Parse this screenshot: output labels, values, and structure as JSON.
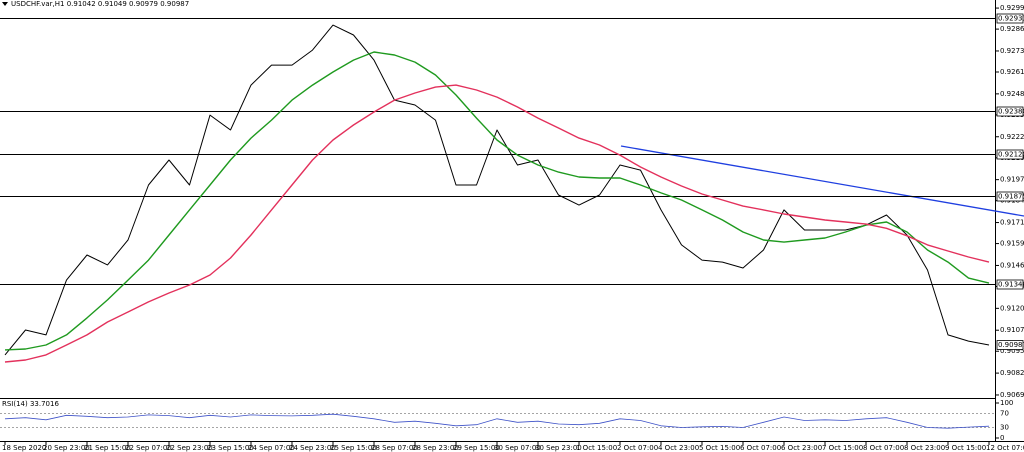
{
  "chart_data": {
    "type": "line",
    "title": "USDCHF.var,H1 0.91042 0.91049 0.90979 0.90987",
    "categories": [
      "18 Sep 2020",
      null,
      "20 Sep 23:00",
      null,
      "21 Sep 15:00",
      null,
      "22 Sep 07:00",
      null,
      "22 Sep 23:00",
      null,
      "23 Sep 15:00",
      null,
      "24 Sep 07:00",
      null,
      "24 Sep 23:00",
      null,
      "25 Sep 15:00",
      null,
      "28 Sep 07:00",
      null,
      "28 Sep 23:00",
      null,
      "29 Sep 15:00",
      null,
      "30 Sep 07:00",
      null,
      "30 Sep 23:00",
      null,
      "1 Oct 15:00",
      null,
      "2 Oct 07:00",
      null,
      "4 Oct 23:00",
      null,
      "5 Oct 15:00",
      null,
      "6 Oct 07:00",
      null,
      "6 Oct 23:00",
      null,
      "7 Oct 15:00",
      null,
      "8 Oct 07:00",
      null,
      "8 Oct 23:00",
      null,
      "9 Oct 15:00",
      null,
      "12 Oct 07:00"
    ],
    "series": [
      {
        "color": "#000000",
        "values": [
          0.90928,
          0.91076,
          0.91047,
          0.91373,
          0.91522,
          0.91463,
          0.91611,
          0.91938,
          0.92087,
          0.91938,
          0.92354,
          0.92265,
          0.92532,
          0.92651,
          0.92651,
          0.9274,
          0.92889,
          0.9283,
          0.92681,
          0.92443,
          0.92414,
          0.92324,
          0.91938,
          0.91938,
          0.92265,
          0.92057,
          0.92087,
          0.91879,
          0.91819,
          0.91879,
          0.92057,
          0.92027,
          0.9179,
          0.91582,
          0.91492,
          0.9148,
          0.91445,
          0.91552,
          0.9179,
          0.91671,
          0.91671,
          0.91671,
          0.917,
          0.9176,
          0.91641,
          0.91433,
          0.91047,
          0.9101,
          0.90987
        ]
      },
      {
        "color": "#1f9a1f",
        "values": [
          0.90958,
          0.90963,
          0.90987,
          0.91047,
          0.91148,
          0.91255,
          0.91373,
          0.91492,
          0.91641,
          0.9179,
          0.91938,
          0.92087,
          0.92217,
          0.92324,
          0.92443,
          0.92532,
          0.9261,
          0.92681,
          0.92729,
          0.92711,
          0.92669,
          0.92592,
          0.92473,
          0.92336,
          0.92206,
          0.92116,
          0.92057,
          0.92015,
          0.91986,
          0.9198,
          0.9198,
          0.91938,
          0.91891,
          0.91849,
          0.9179,
          0.9173,
          0.91659,
          0.91611,
          0.91599,
          0.91611,
          0.91623,
          0.91659,
          0.917,
          0.91718,
          0.91659,
          0.91552,
          0.9148,
          0.91385,
          0.91355
        ]
      },
      {
        "color": "#e3315c",
        "values": [
          0.90886,
          0.90898,
          0.90928,
          0.90987,
          0.91047,
          0.91124,
          0.91183,
          0.91243,
          0.91296,
          0.91344,
          0.91403,
          0.91504,
          0.91641,
          0.9179,
          0.91938,
          0.92087,
          0.92206,
          0.92295,
          0.92372,
          0.92443,
          0.92485,
          0.9252,
          0.92532,
          0.92503,
          0.92461,
          0.92402,
          0.92336,
          0.92277,
          0.92217,
          0.92176,
          0.92116,
          0.92045,
          0.91986,
          0.91932,
          0.91885,
          0.91849,
          0.91813,
          0.9179,
          0.91766,
          0.91748,
          0.9173,
          0.91718,
          0.91706,
          0.91681,
          0.91636,
          0.91582,
          0.91546,
          0.9151,
          0.9148
        ]
      }
    ],
    "ylim": [
      0.90672,
      0.93038
    ],
    "yticks": [
      {
        "value": 0.9299,
        "label": "0.92990"
      },
      0.92865,
      0.92735,
      {
        "value": 0.9261,
        "label": "0.92610"
      },
      {
        "value": 0.9248,
        "label": "0.92480"
      },
      0.92355,
      0.92225,
      {
        "value": 0.921,
        "label": "0.92100"
      },
      {
        "value": 0.9197,
        "label": "0.91970"
      },
      0.91845,
      0.91715,
      {
        "value": 0.9159,
        "label": "0.91590"
      },
      {
        "value": 0.9146,
        "label": "0.91460"
      },
      0.91335,
      0.91205,
      0.91075,
      {
        "value": 0.9095,
        "label": "0.90950"
      },
      {
        "value": 0.9082,
        "label": "0.90820"
      },
      {
        "value": 0.9069,
        "label": "0.90690"
      }
    ],
    "levels": [
      0.92933,
      {
        "value": 0.9238,
        "label": "0.92380"
      },
      {
        "value": 0.9212,
        "label": "0.92120"
      },
      0.91875,
      0.91348
    ],
    "last_price": 0.90987,
    "rsi": {
      "title": "RSI(14) 33.7016",
      "color": "#3e52c8",
      "ylim": [
        0,
        100
      ],
      "yticks": [
        0,
        30,
        70,
        100
      ],
      "values": [
        55,
        58,
        52,
        65,
        62,
        58,
        60,
        66,
        64,
        58,
        65,
        60,
        66,
        64,
        63,
        65,
        68,
        62,
        55,
        45,
        48,
        42,
        35,
        38,
        55,
        45,
        48,
        40,
        38,
        42,
        55,
        50,
        35,
        30,
        32,
        33,
        30,
        45,
        60,
        50,
        52,
        50,
        55,
        58,
        45,
        30,
        28,
        31,
        33.7016
      ]
    }
  }
}
